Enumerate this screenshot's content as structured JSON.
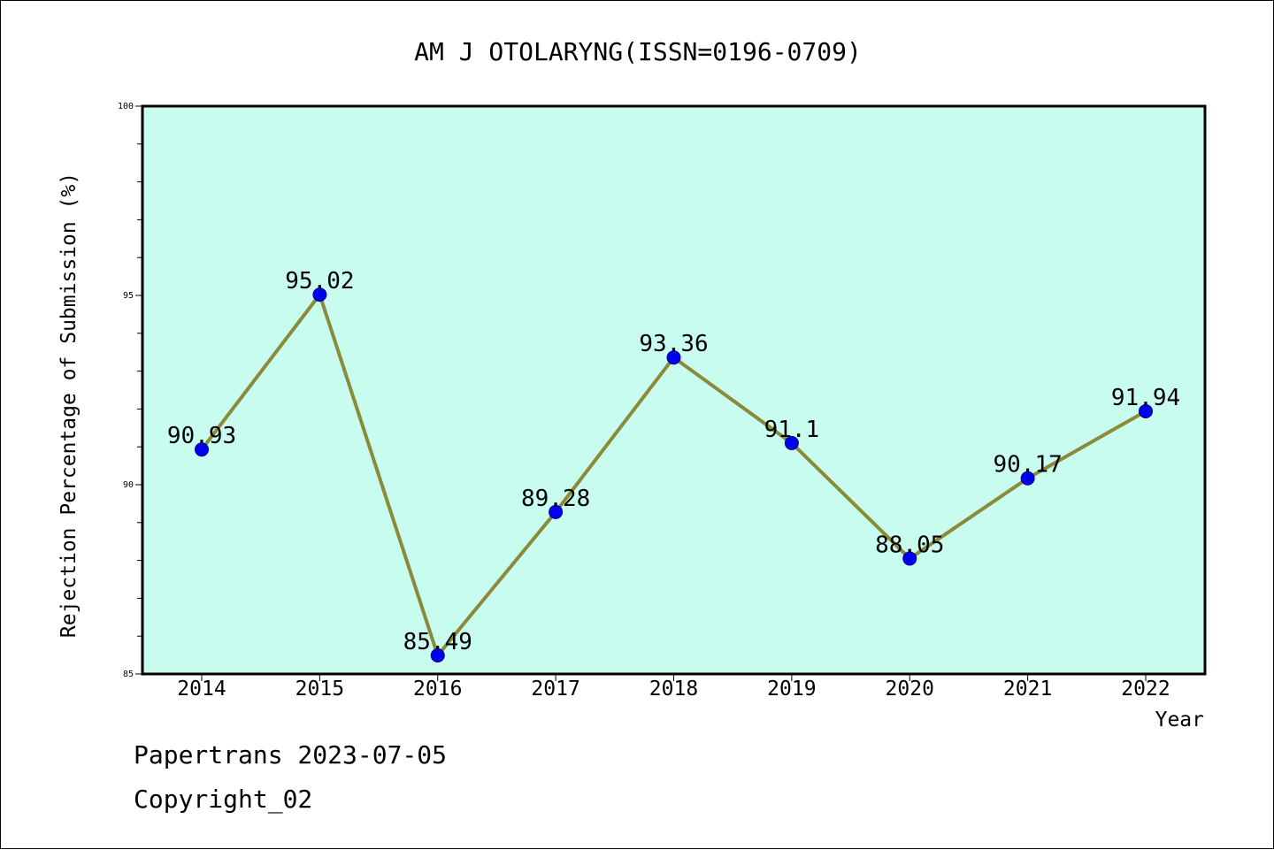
{
  "chart_data": {
    "type": "line",
    "title": "AM J OTOLARYNG(ISSN=0196-0709)",
    "xlabel": "Year",
    "ylabel": "Rejection Percentage of Submission (%)",
    "categories": [
      "2014",
      "2015",
      "2016",
      "2017",
      "2018",
      "2019",
      "2020",
      "2021",
      "2022"
    ],
    "series": [
      {
        "values": [
          90.93,
          95.02,
          85.49,
          89.28,
          93.36,
          91.1,
          88.05,
          90.17,
          91.94
        ]
      }
    ],
    "data_labels": [
      "90.93",
      "95.02",
      "85.49",
      "89.28",
      "93.36",
      "91.1",
      "88.05",
      "90.17",
      "91.94"
    ],
    "ylim": [
      85,
      100
    ],
    "yticks": [
      "85",
      "90",
      "95",
      "100"
    ],
    "grid": false,
    "colors": {
      "plot_background": "#c8fcee",
      "line": "#8b8a3a",
      "marker": "#0000ee",
      "axis": "#000000"
    }
  },
  "footer": {
    "line1": "Papertrans 2023-07-05",
    "line2": "Copyright_02"
  }
}
